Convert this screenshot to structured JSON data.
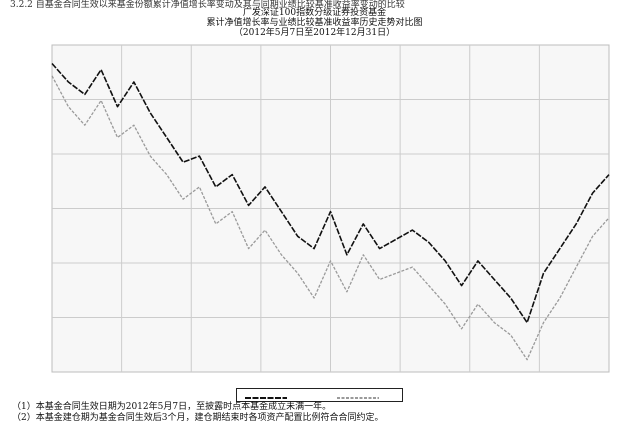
{
  "header": {
    "section": "3.2.2 自基金合同生效以来基金份额累计净值增长率变动及其与同期业绩比较基准收益率变动的比较",
    "fund_name": "广发深证100指数分级证券投资基金",
    "chart_title": "累计净值增长率与业绩比较基准收益率历史走势对比图",
    "period": "（2012年5月7日至2012年12月31日）"
  },
  "notes": [
    "（1）本基金合同生效日期为2012年5月7日，至披露时点本基金成立未满一年。",
    "（2）本基金建仓期为基金合同生效后3个月，建仓期结束时各项资产配置比例符合合同约定。"
  ],
  "colors": {
    "nav": "#111111",
    "benchmark": "#9a9a9a",
    "grid": "#cccccc",
    "plot_bg": "#f7f7f7"
  },
  "chart_data": {
    "type": "line",
    "title": "累计净值增长率与业绩比较基准收益率历史走势对比图",
    "xlabel": "",
    "ylabel": "",
    "ylim": [
      -25,
      1.5
    ],
    "xlim": [
      "2012-05-07",
      "2012-12-31"
    ],
    "grid": true,
    "legend_position": "bottom-center",
    "series": [
      {
        "color": "#111111",
        "x": [
          "2012-05-07",
          "2012-05-14",
          "2012-05-21",
          "2012-05-28",
          "2012-06-04",
          "2012-06-11",
          "2012-06-18",
          "2012-06-25",
          "2012-07-02",
          "2012-07-09",
          "2012-07-16",
          "2012-07-23",
          "2012-07-30",
          "2012-08-06",
          "2012-08-13",
          "2012-08-20",
          "2012-08-27",
          "2012-09-03",
          "2012-09-10",
          "2012-09-17",
          "2012-09-24",
          "2012-10-08",
          "2012-10-15",
          "2012-10-22",
          "2012-10-29",
          "2012-11-05",
          "2012-11-12",
          "2012-11-19",
          "2012-11-26",
          "2012-12-03",
          "2012-12-10",
          "2012-12-17",
          "2012-12-24",
          "2012-12-31"
        ],
        "values": [
          0.0,
          -1.5,
          -2.5,
          -0.5,
          -3.5,
          -1.5,
          -4.0,
          -6.0,
          -8.0,
          -7.5,
          -10.0,
          -9.0,
          -11.5,
          -10.0,
          -12.0,
          -14.0,
          -15.0,
          -12.0,
          -15.5,
          -13.0,
          -15.0,
          -13.5,
          -14.5,
          -16.0,
          -18.0,
          -16.0,
          -17.5,
          -19.0,
          -21.0,
          -17.0,
          -15.0,
          -13.0,
          -10.5,
          -9.0
        ]
      },
      {
        "color": "#9a9a9a",
        "x": [
          "2012-05-07",
          "2012-05-14",
          "2012-05-21",
          "2012-05-28",
          "2012-06-04",
          "2012-06-11",
          "2012-06-18",
          "2012-06-25",
          "2012-07-02",
          "2012-07-09",
          "2012-07-16",
          "2012-07-23",
          "2012-07-30",
          "2012-08-06",
          "2012-08-13",
          "2012-08-20",
          "2012-08-27",
          "2012-09-03",
          "2012-09-10",
          "2012-09-17",
          "2012-09-24",
          "2012-10-08",
          "2012-10-15",
          "2012-10-22",
          "2012-10-29",
          "2012-11-05",
          "2012-11-12",
          "2012-11-19",
          "2012-11-26",
          "2012-12-03",
          "2012-12-10",
          "2012-12-17",
          "2012-12-24",
          "2012-12-31"
        ],
        "values": [
          -1.0,
          -3.5,
          -5.0,
          -3.0,
          -6.0,
          -5.0,
          -7.5,
          -9.0,
          -11.0,
          -10.0,
          -13.0,
          -12.0,
          -15.0,
          -13.5,
          -15.5,
          -17.0,
          -19.0,
          -16.0,
          -18.5,
          -15.5,
          -17.5,
          -16.5,
          -18.0,
          -19.5,
          -21.5,
          -19.5,
          -21.0,
          -22.0,
          -24.0,
          -21.0,
          -19.0,
          -16.5,
          -14.0,
          -12.5
        ]
      }
    ]
  }
}
